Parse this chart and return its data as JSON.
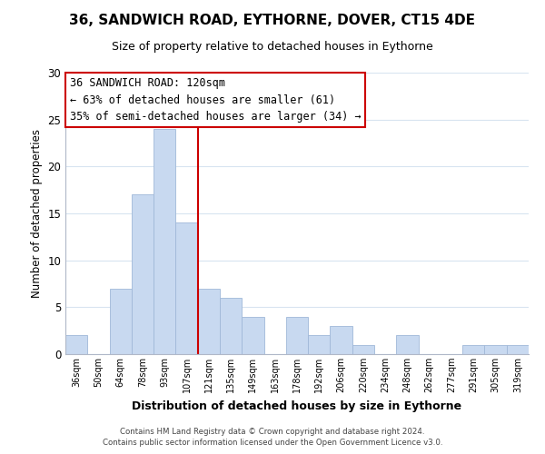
{
  "title": "36, SANDWICH ROAD, EYTHORNE, DOVER, CT15 4DE",
  "subtitle": "Size of property relative to detached houses in Eythorne",
  "xlabel": "Distribution of detached houses by size in Eythorne",
  "ylabel": "Number of detached properties",
  "bar_labels": [
    "36sqm",
    "50sqm",
    "64sqm",
    "78sqm",
    "93sqm",
    "107sqm",
    "121sqm",
    "135sqm",
    "149sqm",
    "163sqm",
    "178sqm",
    "192sqm",
    "206sqm",
    "220sqm",
    "234sqm",
    "248sqm",
    "262sqm",
    "277sqm",
    "291sqm",
    "305sqm",
    "319sqm"
  ],
  "bar_heights": [
    2,
    0,
    7,
    17,
    24,
    14,
    7,
    6,
    4,
    0,
    4,
    2,
    3,
    1,
    0,
    2,
    0,
    0,
    1,
    1,
    1
  ],
  "bar_color": "#c8d9f0",
  "bar_edge_color": "#a0b8d8",
  "reference_line_color": "#cc0000",
  "ylim": [
    0,
    30
  ],
  "yticks": [
    0,
    5,
    10,
    15,
    20,
    25,
    30
  ],
  "annotation_title": "36 SANDWICH ROAD: 120sqm",
  "annotation_line1": "← 63% of detached houses are smaller (61)",
  "annotation_line2": "35% of semi-detached houses are larger (34) →",
  "annotation_box_color": "#ffffff",
  "annotation_box_edge": "#cc0000",
  "footer_line1": "Contains HM Land Registry data © Crown copyright and database right 2024.",
  "footer_line2": "Contains public sector information licensed under the Open Government Licence v3.0.",
  "background_color": "#ffffff",
  "grid_color": "#d8e4f0"
}
